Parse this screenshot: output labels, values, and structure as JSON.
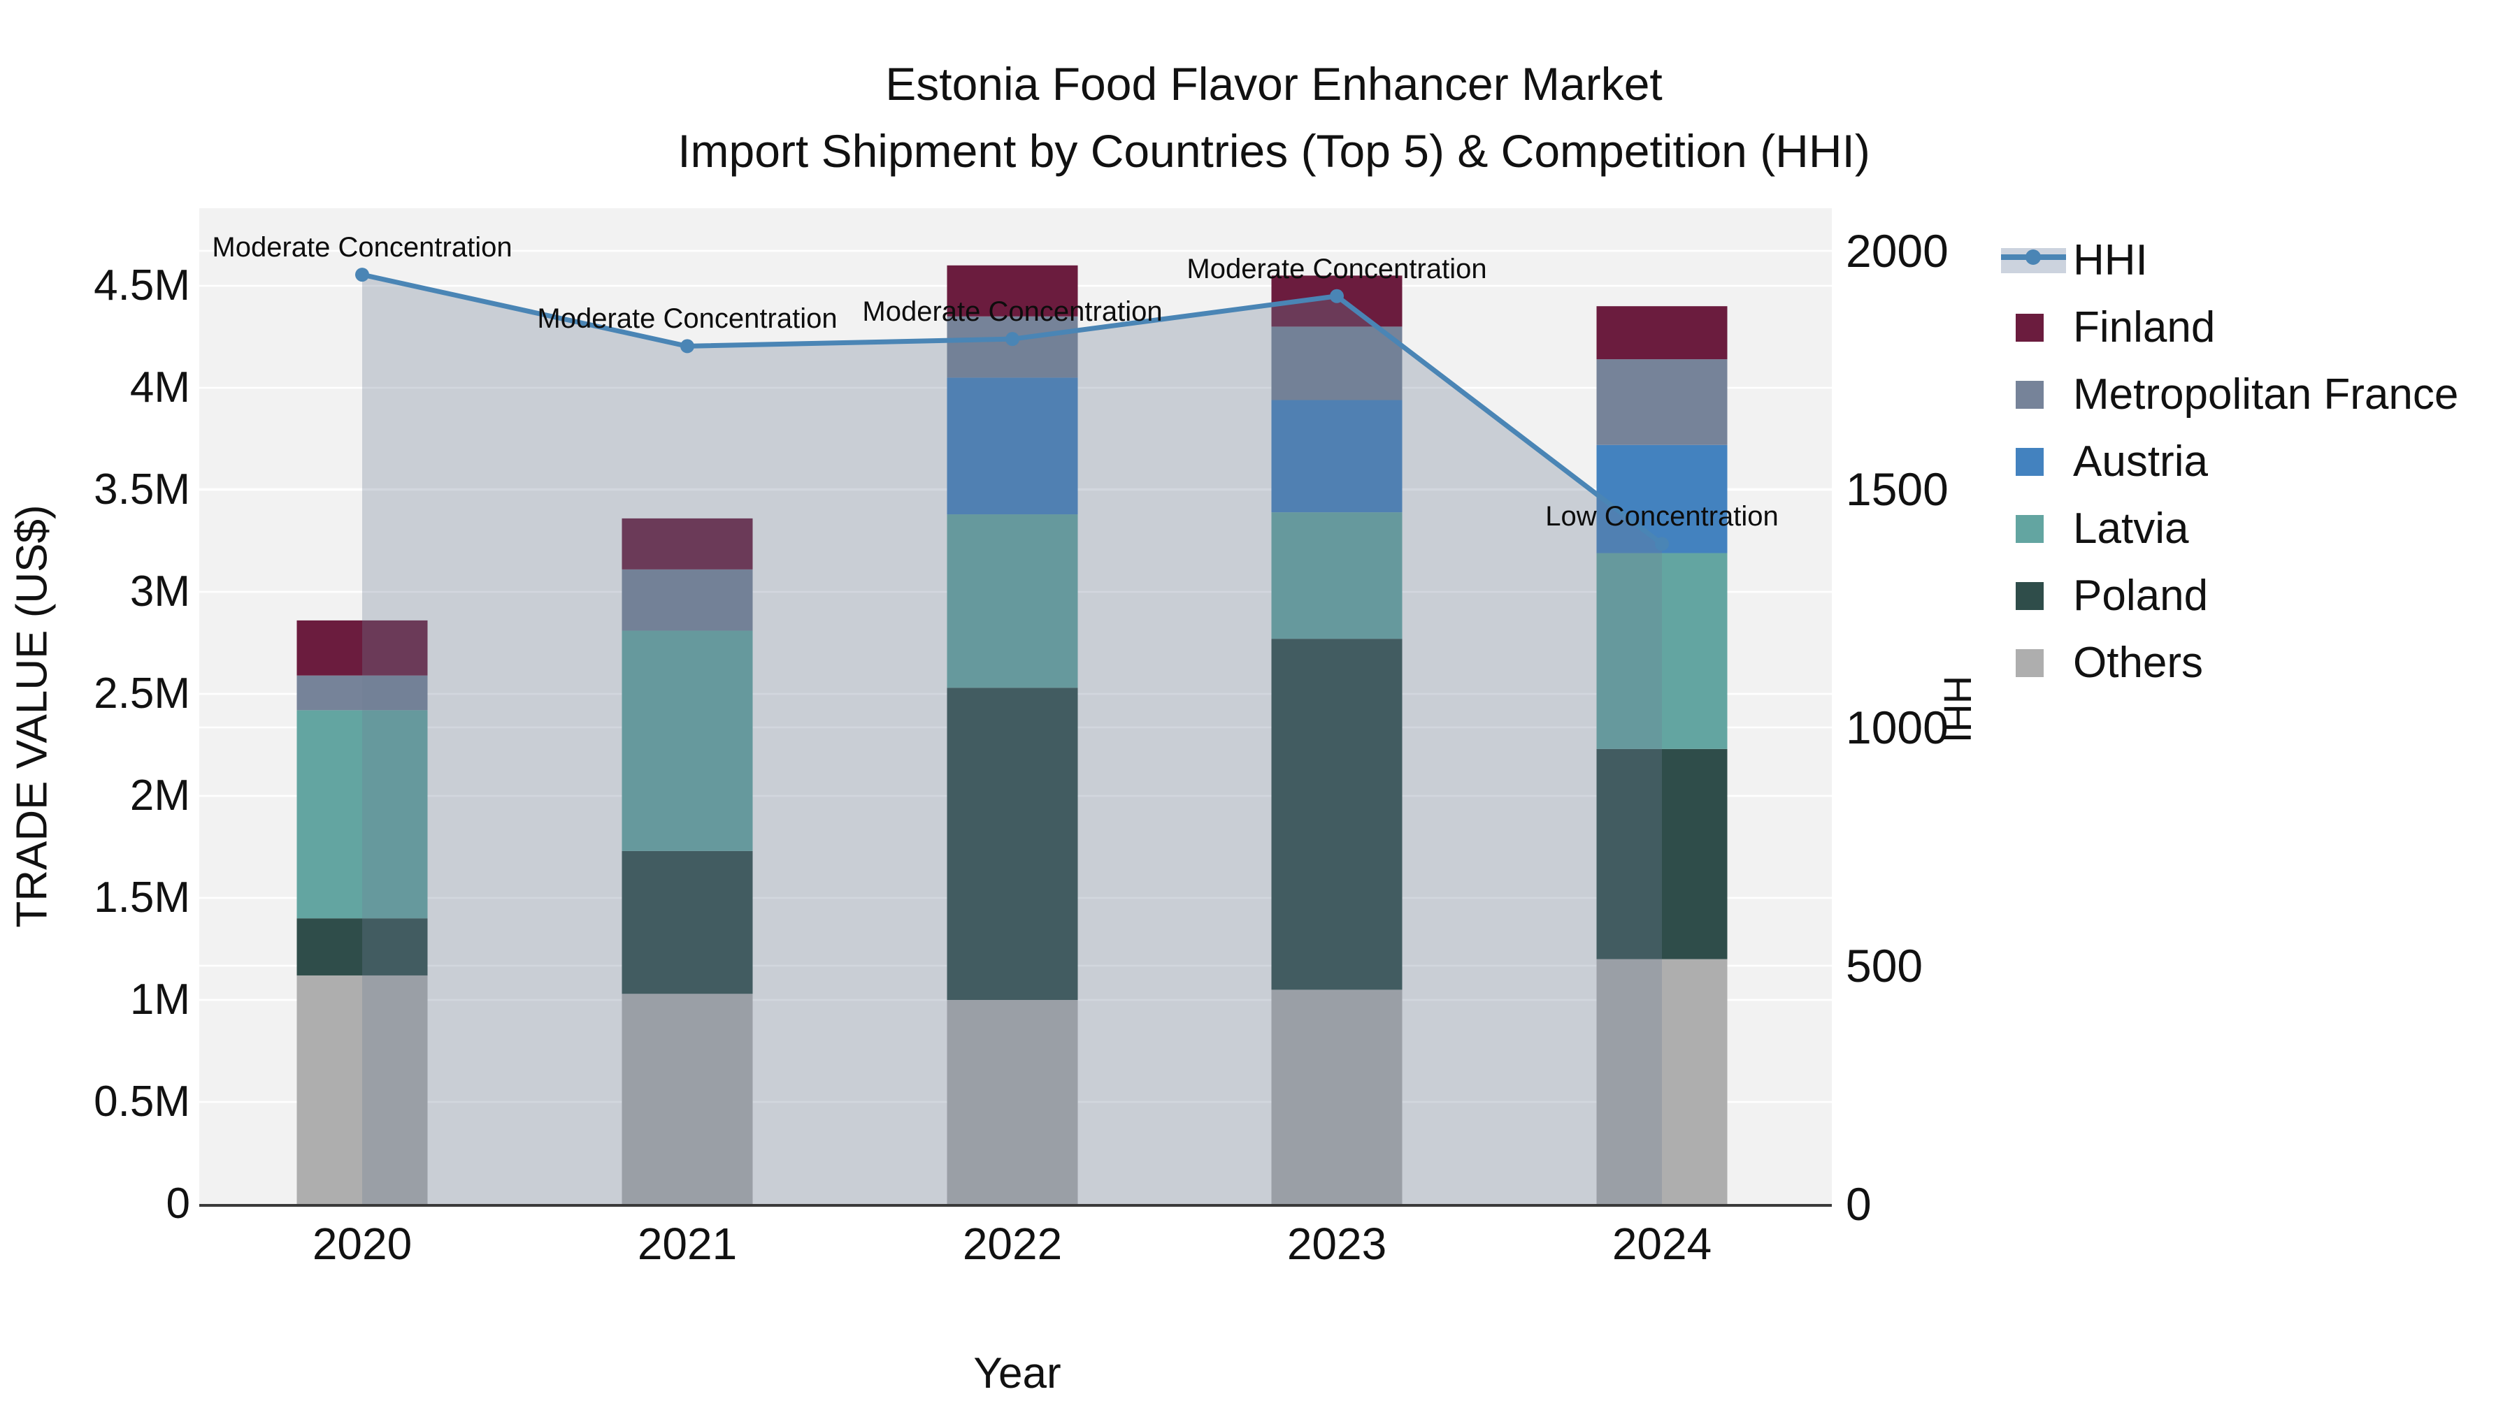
{
  "title": {
    "line1": "Estonia Food Flavor Enhancer Market",
    "line2": "Import Shipment by Countries (Top 5) & Competition (HHI)"
  },
  "colors": {
    "plot_background": "#f2f2f2",
    "gridline": "#ffffff",
    "axis_line": "#3a3a3a",
    "text": "#111111",
    "hhi_line": "#4a85b5",
    "hhi_area": "rgba(110,125,150,0.31)"
  },
  "legend": {
    "items": [
      {
        "label": "HHI",
        "type": "line",
        "color": "#4a85b5"
      },
      {
        "label": "Finland",
        "type": "swatch",
        "color": "#6b1c3e"
      },
      {
        "label": "Metropolitan France",
        "type": "swatch",
        "color": "#768399"
      },
      {
        "label": "Austria",
        "type": "swatch",
        "color": "#4382bf"
      },
      {
        "label": "Latvia",
        "type": "swatch",
        "color": "#63a5a1"
      },
      {
        "label": "Poland",
        "type": "swatch",
        "color": "#2f4d4a"
      },
      {
        "label": "Others",
        "type": "swatch",
        "color": "#aeaeae"
      }
    ]
  },
  "chart_data": {
    "type": "combo: stacked-bar + line",
    "categories": [
      "2020",
      "2021",
      "2022",
      "2023",
      "2024"
    ],
    "bar_series": [
      {
        "name": "Others",
        "color": "#aeaeae",
        "values": [
          1.12,
          1.03,
          1.0,
          1.05,
          1.2
        ]
      },
      {
        "name": "Poland",
        "color": "#2f4d4a",
        "values": [
          0.28,
          0.7,
          1.53,
          1.72,
          1.03
        ]
      },
      {
        "name": "Latvia",
        "color": "#63a5a1",
        "values": [
          1.02,
          1.08,
          0.85,
          0.62,
          0.96
        ]
      },
      {
        "name": "Austria",
        "color": "#4382bf",
        "values": [
          0.0,
          0.0,
          0.67,
          0.55,
          0.53
        ]
      },
      {
        "name": "Metropolitan France",
        "color": "#768399",
        "values": [
          0.17,
          0.3,
          0.3,
          0.36,
          0.42
        ]
      },
      {
        "name": "Finland",
        "color": "#6b1c3e",
        "values": [
          0.27,
          0.25,
          0.25,
          0.25,
          0.26
        ]
      }
    ],
    "bar_totals": [
      2.86,
      3.36,
      4.6,
      4.55,
      4.4
    ],
    "bar_value_unit": "M US$",
    "line_series": {
      "name": "HHI",
      "color": "#4a85b5",
      "values": [
        1950,
        1800,
        1815,
        1905,
        1385
      ]
    },
    "annotations": [
      {
        "category": "2020",
        "text": "Moderate Concentration"
      },
      {
        "category": "2021",
        "text": "Moderate Concentration"
      },
      {
        "category": "2022",
        "text": "Moderate Concentration"
      },
      {
        "category": "2023",
        "text": "Moderate Concentration"
      },
      {
        "category": "2024",
        "text": "Low Concentration"
      }
    ],
    "axes": {
      "x": {
        "title": "Year"
      },
      "y_left": {
        "title": "TRADE VALUE (US$)",
        "tick_labels": [
          "0",
          "0.5M",
          "1M",
          "1.5M",
          "2M",
          "2.5M",
          "3M",
          "3.5M",
          "4M",
          "4.5M"
        ],
        "tick_values": [
          0,
          0.5,
          1,
          1.5,
          2,
          2.5,
          3,
          3.5,
          4,
          4.5
        ],
        "range": [
          0,
          4.88
        ]
      },
      "y_right": {
        "title": "HHI",
        "tick_labels": [
          "0",
          "500",
          "1000",
          "1500",
          "2000"
        ],
        "tick_values": [
          0,
          500,
          1000,
          1500,
          2000
        ],
        "range": [
          0,
          2089
        ]
      }
    },
    "legend_position": "right",
    "grid": true,
    "stack_order_bottom_to_top": [
      "Others",
      "Poland",
      "Latvia",
      "Austria",
      "Metropolitan France",
      "Finland"
    ]
  }
}
